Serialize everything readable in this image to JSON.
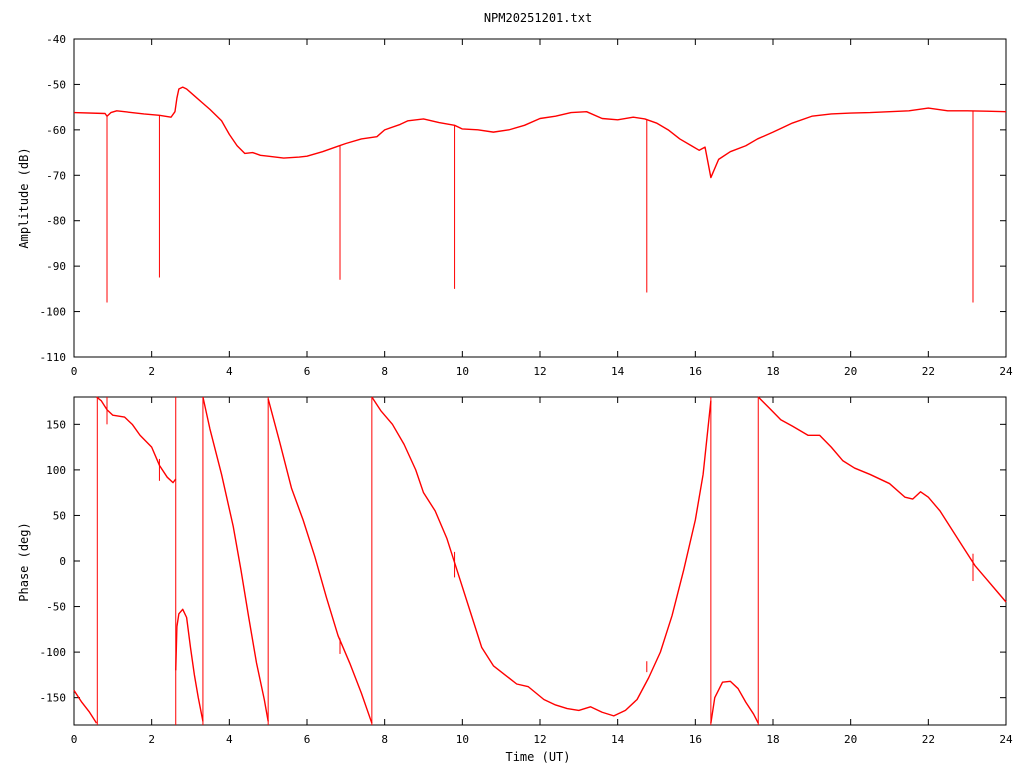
{
  "chart_data": [
    {
      "type": "line",
      "title": "NPM20251201.txt",
      "xlabel": "",
      "ylabel": "Amplitude (dB)",
      "xlim": [
        0,
        24
      ],
      "ylim": [
        -110,
        -40
      ],
      "xticks": [
        "0",
        "2",
        "4",
        "6",
        "8",
        "10",
        "12",
        "14",
        "16",
        "18",
        "20",
        "22",
        "24"
      ],
      "yticks": [
        "-40",
        "-50",
        "-60",
        "-70",
        "-80",
        "-90",
        "-100",
        "-110"
      ],
      "grid": false,
      "series": [
        {
          "color": "#ff0000",
          "x": [
            0.0,
            0.8,
            0.85,
            0.95,
            1.1,
            1.4,
            1.8,
            2.2,
            2.5,
            2.6,
            2.65,
            2.7,
            2.8,
            2.9,
            3.1,
            3.3,
            3.5,
            3.8,
            4.0,
            4.2,
            4.4,
            4.6,
            4.8,
            5.0,
            5.4,
            5.8,
            6.0,
            6.4,
            6.8,
            7.0,
            7.4,
            7.8,
            8.0,
            8.4,
            8.6,
            9.0,
            9.4,
            9.8,
            10.0,
            10.4,
            10.8,
            11.2,
            11.6,
            12.0,
            12.4,
            12.8,
            13.2,
            13.6,
            14.0,
            14.4,
            14.7,
            15.0,
            15.3,
            15.6,
            15.9,
            16.1,
            16.25,
            16.4,
            16.6,
            16.9,
            17.3,
            17.6,
            18.0,
            18.5,
            19.0,
            19.5,
            20.0,
            20.5,
            21.0,
            21.5,
            22.0,
            22.5,
            23.0,
            23.5,
            24.0
          ],
          "y": [
            -56.2,
            -56.4,
            -57.0,
            -56.2,
            -55.8,
            -56.1,
            -56.5,
            -56.8,
            -57.2,
            -56.0,
            -53.0,
            -51.0,
            -50.6,
            -51.0,
            -52.5,
            -54.0,
            -55.5,
            -58.0,
            -61.0,
            -63.5,
            -65.2,
            -65.0,
            -65.6,
            -65.8,
            -66.2,
            -66.0,
            -65.8,
            -64.8,
            -63.6,
            -63.0,
            -62.0,
            -61.5,
            -60.0,
            -58.8,
            -58.0,
            -57.6,
            -58.4,
            -59.0,
            -59.8,
            -60.0,
            -60.5,
            -60.0,
            -59.0,
            -57.5,
            -57.0,
            -56.2,
            -56.0,
            -57.5,
            -57.8,
            -57.2,
            -57.6,
            -58.5,
            -60.0,
            -62.0,
            -63.5,
            -64.5,
            -63.8,
            -70.5,
            -66.5,
            -64.8,
            -63.5,
            -62.0,
            -60.5,
            -58.5,
            -57.0,
            -56.5,
            -56.3,
            -56.2,
            -56.0,
            -55.8,
            -55.2,
            -55.8,
            -55.8,
            -55.9,
            -56.0
          ],
          "spikes": [
            {
              "x": 0.85,
              "y": -98.0
            },
            {
              "x": 2.2,
              "y": -92.5
            },
            {
              "x": 6.85,
              "y": -93.0
            },
            {
              "x": 9.8,
              "y": -95.0
            },
            {
              "x": 14.75,
              "y": -95.8
            },
            {
              "x": 23.15,
              "y": -98.0
            }
          ]
        }
      ]
    },
    {
      "type": "line",
      "title": "",
      "xlabel": "Time (UT)",
      "ylabel": "Phase (deg)",
      "xlim": [
        0,
        24
      ],
      "ylim": [
        -180,
        180
      ],
      "xticks": [
        "0",
        "2",
        "4",
        "6",
        "8",
        "10",
        "12",
        "14",
        "16",
        "18",
        "20",
        "22",
        "24"
      ],
      "yticks": [
        "150",
        "100",
        "50",
        "0",
        "-50",
        "-100",
        "-150"
      ],
      "grid": false,
      "series": [
        {
          "color": "#ff0000",
          "segments": [
            {
              "x": [
                0.0,
                0.2,
                0.4,
                0.58
              ],
              "y": [
                -142,
                -155,
                -166,
                -178
              ]
            },
            {
              "x": [
                0.58,
                0.7,
                0.85,
                1.0,
                1.3,
                1.5,
                1.7,
                2.0,
                2.2,
                2.4,
                2.55,
                2.62
              ],
              "y": [
                180,
                176,
                166,
                160,
                158,
                150,
                138,
                125,
                105,
                92,
                86,
                90
              ]
            },
            {
              "x": [
                2.62,
                2.65,
                2.7,
                2.8,
                2.9,
                3.0,
                3.1,
                3.2,
                3.32
              ],
              "y": [
                -120,
                -72,
                -58,
                -53,
                -62,
                -95,
                -125,
                -150,
                -176
              ]
            },
            {
              "x": [
                3.32,
                3.5,
                3.8,
                4.1,
                4.3,
                4.5,
                4.7,
                4.9,
                5.0
              ],
              "y": [
                180,
                145,
                95,
                38,
                -10,
                -62,
                -112,
                -152,
                -176
              ]
            },
            {
              "x": [
                5.0,
                5.3,
                5.6,
                5.9,
                6.2,
                6.5,
                6.8,
                7.1,
                7.4,
                7.67
              ],
              "y": [
                178,
                130,
                80,
                45,
                5,
                -40,
                -82,
                -112,
                -145,
                -178
              ]
            },
            {
              "x": [
                7.67,
                7.9,
                8.2,
                8.5,
                8.8,
                9.0,
                9.3,
                9.6,
                9.9,
                10.2,
                10.5,
                10.8,
                11.1,
                11.4,
                11.7,
                11.9,
                12.1,
                12.4,
                12.7,
                13.0,
                13.3,
                13.6,
                13.9,
                14.2,
                14.5,
                14.8,
                15.1,
                15.4,
                15.7,
                16.0,
                16.2,
                16.4
              ],
              "y": [
                180,
                165,
                150,
                128,
                100,
                75,
                55,
                25,
                -15,
                -55,
                -95,
                -115,
                -125,
                -135,
                -138,
                -145,
                -152,
                -158,
                -162,
                -164,
                -160,
                -166,
                -170,
                -164,
                -152,
                -128,
                -100,
                -60,
                -10,
                45,
                95,
                176
              ]
            },
            {
              "x": [
                16.4,
                16.5,
                16.7,
                16.9,
                17.1,
                17.3,
                17.5,
                17.62
              ],
              "y": [
                -178,
                -150,
                -133,
                -132,
                -140,
                -155,
                -168,
                -178
              ]
            },
            {
              "x": [
                17.62,
                17.9,
                18.2,
                18.5,
                18.9,
                19.2,
                19.5,
                19.8,
                20.1,
                20.5,
                21.0,
                21.4,
                21.6,
                21.8,
                22.0,
                22.3,
                22.6,
                22.9,
                23.2,
                23.5,
                23.8,
                24.0
              ],
              "y": [
                180,
                168,
                155,
                148,
                138,
                138,
                125,
                110,
                102,
                95,
                85,
                70,
                68,
                76,
                70,
                55,
                35,
                15,
                -5,
                -20,
                -35,
                -45
              ]
            }
          ],
          "spikes": [
            {
              "x": 0.6,
              "y_from": -180,
              "y_to": 180
            },
            {
              "x": 0.85,
              "y_from": 150,
              "y_to": 180
            },
            {
              "x": 2.2,
              "y_from": 88,
              "y_to": 112
            },
            {
              "x": 2.62,
              "y_from": -180,
              "y_to": 180
            },
            {
              "x": 3.32,
              "y_from": -180,
              "y_to": 180
            },
            {
              "x": 5.0,
              "y_from": -180,
              "y_to": 180
            },
            {
              "x": 6.85,
              "y_from": -102,
              "y_to": -85
            },
            {
              "x": 7.67,
              "y_from": -180,
              "y_to": 180
            },
            {
              "x": 9.8,
              "y_from": -18,
              "y_to": 10
            },
            {
              "x": 14.75,
              "y_from": -122,
              "y_to": -110
            },
            {
              "x": 16.4,
              "y_from": -180,
              "y_to": 180
            },
            {
              "x": 17.62,
              "y_from": -180,
              "y_to": 180
            },
            {
              "x": 23.15,
              "y_from": -22,
              "y_to": 8
            }
          ]
        }
      ]
    }
  ]
}
